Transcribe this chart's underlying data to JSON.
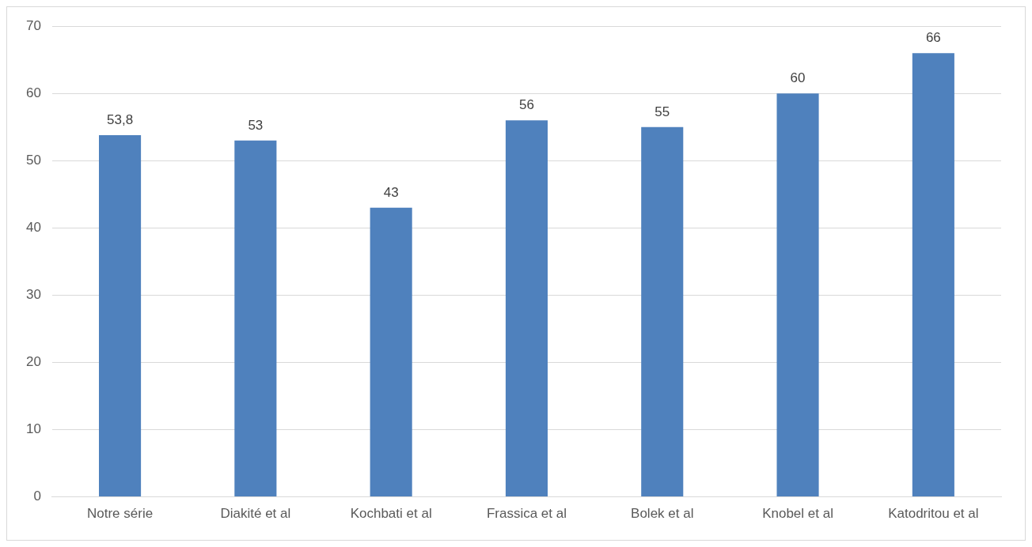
{
  "chart_data": {
    "type": "bar",
    "categories": [
      "Notre série",
      "Diakité et al",
      "Kochbati et al",
      "Frassica et al",
      "Bolek et al",
      "Knobel et al",
      "Katodritou et al"
    ],
    "values": [
      53.8,
      53,
      43,
      56,
      55,
      60,
      66
    ],
    "value_labels": [
      "53,8",
      "53",
      "43",
      "56",
      "55",
      "60",
      "66"
    ],
    "color": "#4f81bd",
    "ylim": [
      0,
      70
    ],
    "yticks": [
      0,
      10,
      20,
      30,
      40,
      50,
      60,
      70
    ],
    "grid": "y",
    "legend": false
  }
}
